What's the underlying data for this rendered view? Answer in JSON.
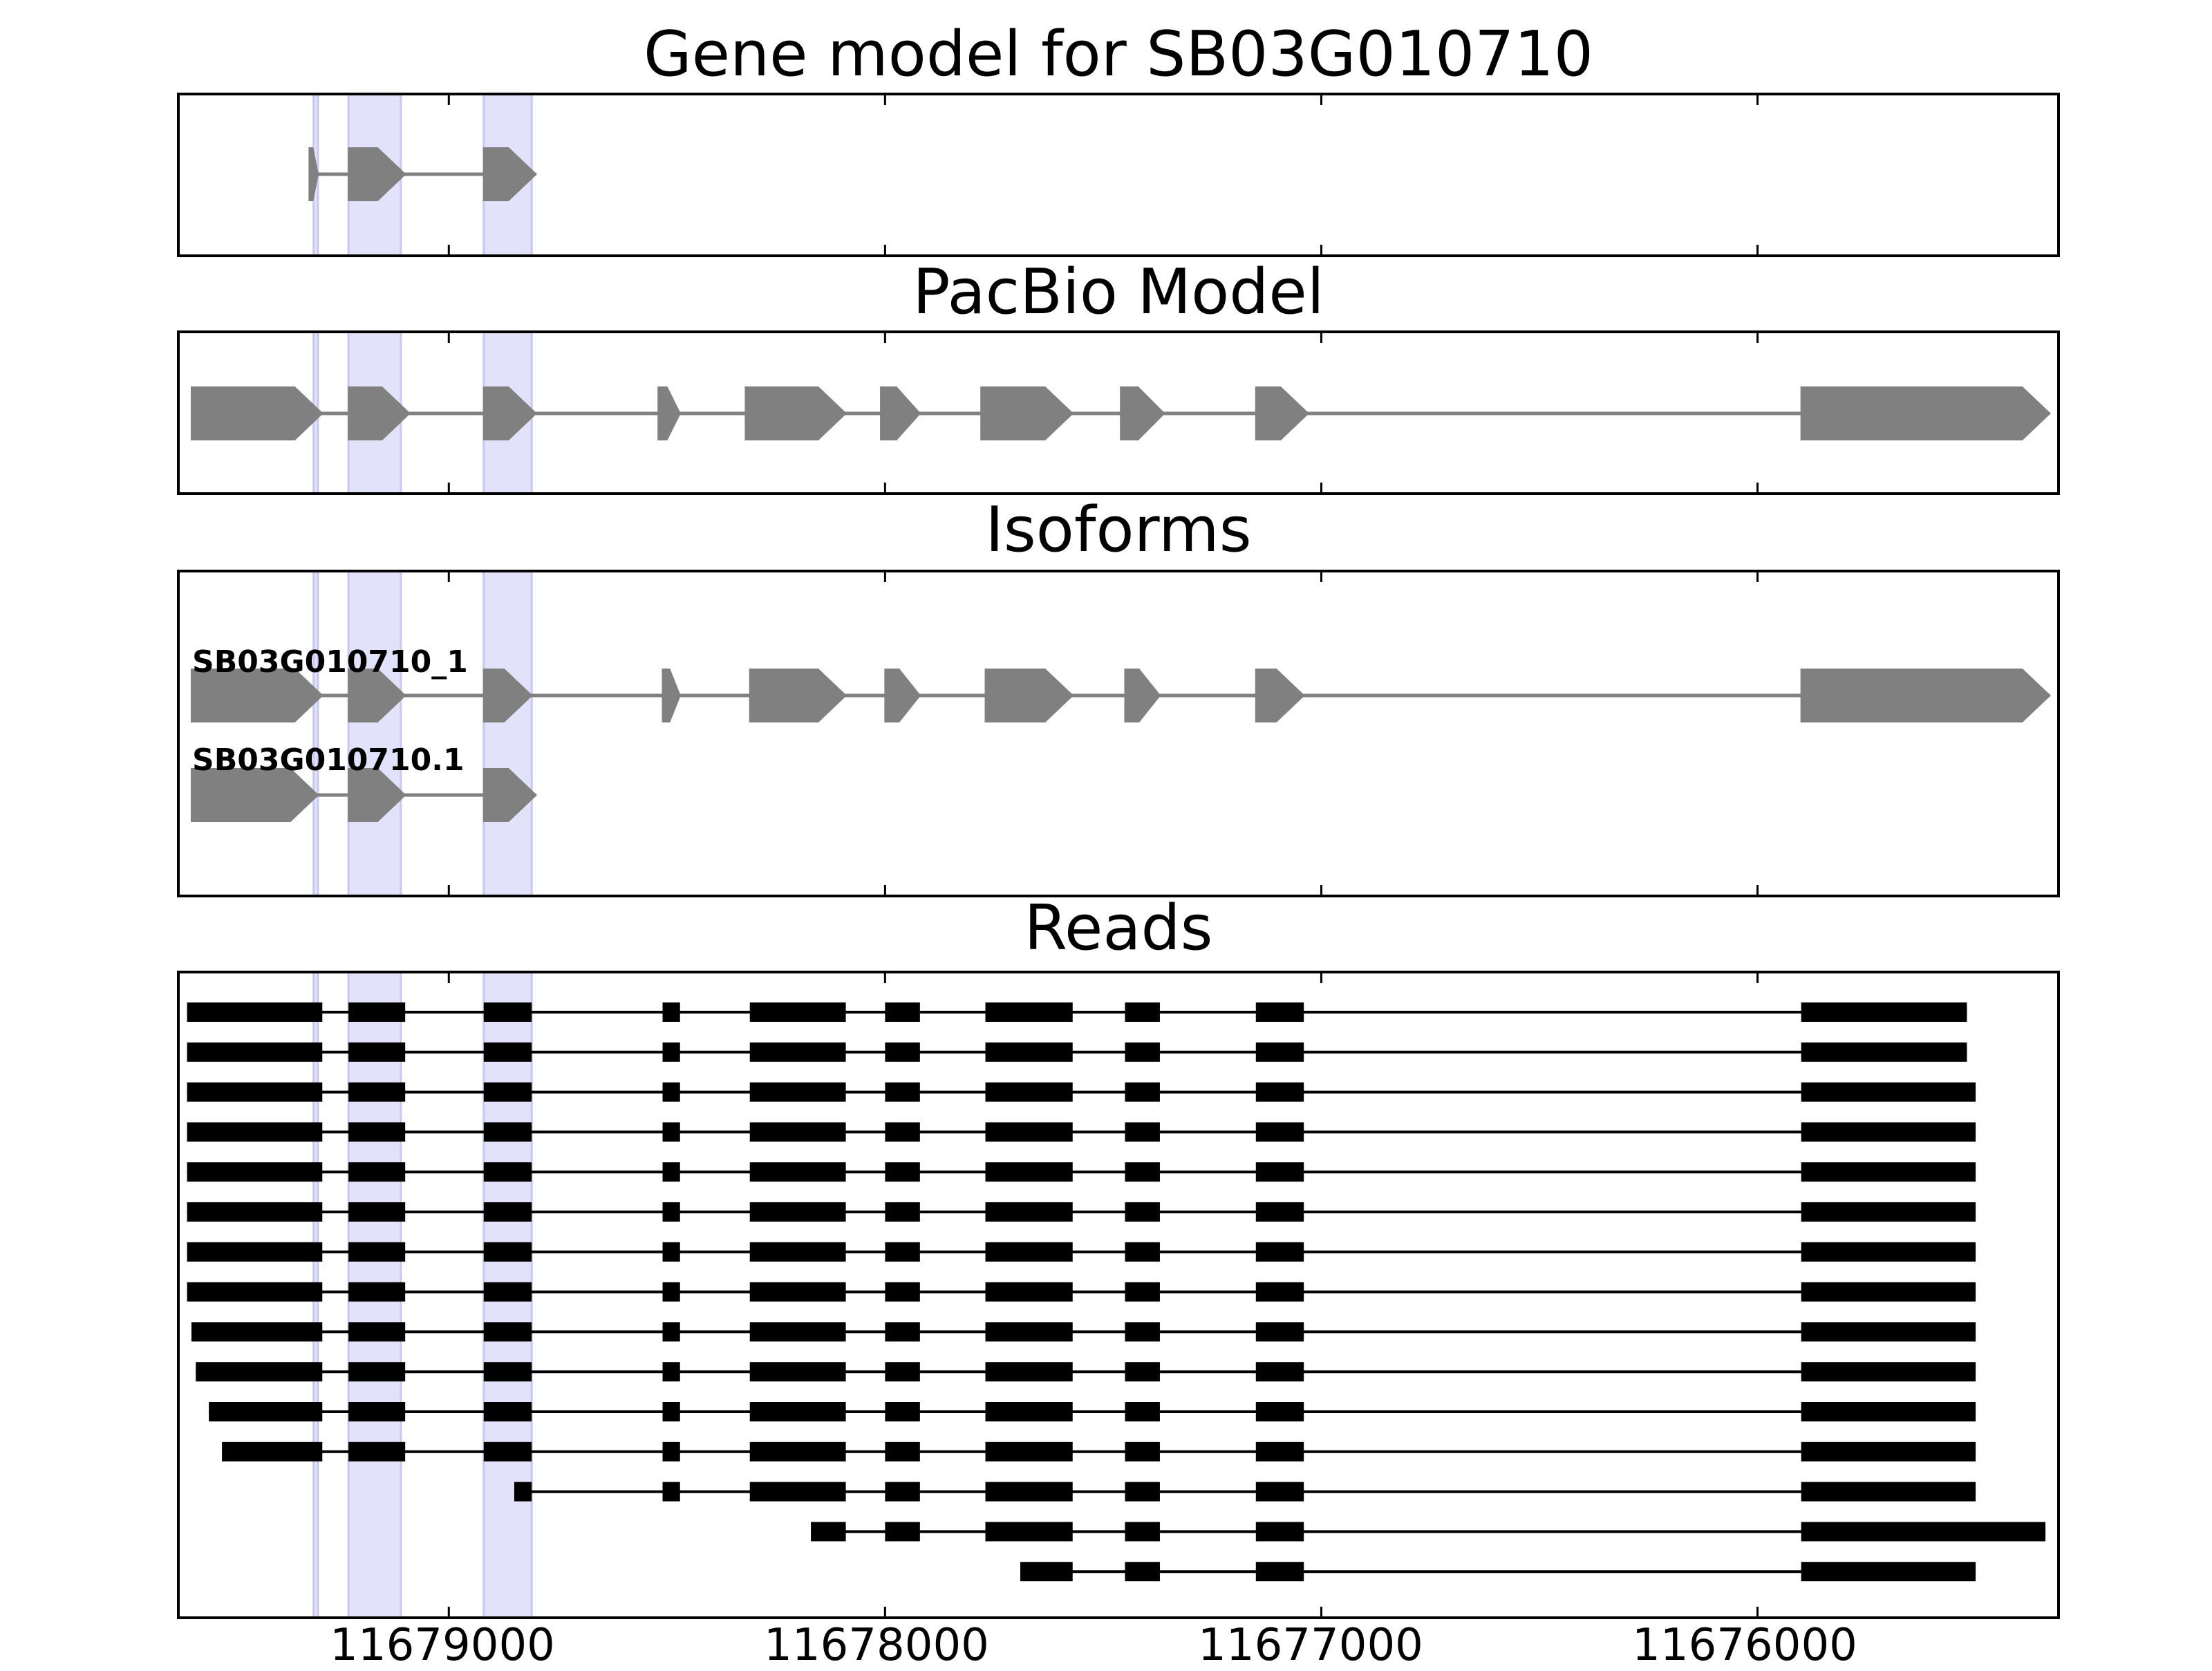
{
  "colors": {
    "feature": "#808080",
    "read": "#000000",
    "highlight": "#e2e2fb",
    "highlight_edge": "#c8c8f0"
  },
  "chart_data": {
    "type": "gene-structure",
    "strand": "minus",
    "xlim": [
      11679620,
      11675310
    ],
    "xticks": [
      11679000,
      11678000,
      11677000,
      11676000
    ],
    "xtick_labels": [
      "11679000",
      "11678000",
      "11677000",
      "11676000"
    ],
    "highlight_regions": [
      [
        11679310,
        11679300
      ],
      [
        11679230,
        11679110
      ],
      [
        11678920,
        11678810
      ]
    ],
    "panels": [
      {
        "title": "Gene model for SB03G010710",
        "tracks": [
          {
            "label": "",
            "exons": [
              [
                11679320,
                11679300
              ],
              [
                11679230,
                11679100
              ],
              [
                11678920,
                11678800
              ]
            ]
          }
        ]
      },
      {
        "title": "PacBio Model",
        "tracks": [
          {
            "label": "",
            "exons": [
              [
                11679590,
                11679290
              ],
              [
                11679230,
                11679090
              ],
              [
                11678920,
                11678800
              ],
              [
                11678520,
                11678470
              ],
              [
                11678320,
                11678090
              ],
              [
                11678010,
                11677920
              ],
              [
                11677780,
                11677570
              ],
              [
                11677460,
                11677360
              ],
              [
                11677150,
                11677030
              ],
              [
                11675900,
                11675330
              ]
            ]
          }
        ]
      },
      {
        "title": "Isoforms",
        "tracks": [
          {
            "label": "SB03G010710_1",
            "exons": [
              [
                11679590,
                11679290
              ],
              [
                11679230,
                11679100
              ],
              [
                11678920,
                11678810
              ],
              [
                11678510,
                11678470
              ],
              [
                11678310,
                11678090
              ],
              [
                11678000,
                11677920
              ],
              [
                11677770,
                11677570
              ],
              [
                11677450,
                11677370
              ],
              [
                11677150,
                11677040
              ],
              [
                11675900,
                11675330
              ]
            ]
          },
          {
            "label": "SB03G010710.1",
            "exons": [
              [
                11679590,
                11679300
              ],
              [
                11679230,
                11679100
              ],
              [
                11678920,
                11678800
              ]
            ]
          }
        ]
      },
      {
        "title": "Reads",
        "reads": [
          [
            [
              11679600,
              11679290
            ],
            [
              11679230,
              11679100
            ],
            [
              11678920,
              11678810
            ],
            [
              11678510,
              11678470
            ],
            [
              11678310,
              11678090
            ],
            [
              11678000,
              11677920
            ],
            [
              11677770,
              11677570
            ],
            [
              11677450,
              11677370
            ],
            [
              11677150,
              11677040
            ],
            [
              11675900,
              11675520
            ]
          ],
          [
            [
              11679600,
              11679290
            ],
            [
              11679230,
              11679100
            ],
            [
              11678920,
              11678810
            ],
            [
              11678510,
              11678470
            ],
            [
              11678310,
              11678090
            ],
            [
              11678000,
              11677920
            ],
            [
              11677770,
              11677570
            ],
            [
              11677450,
              11677370
            ],
            [
              11677150,
              11677040
            ],
            [
              11675900,
              11675520
            ]
          ],
          [
            [
              11679600,
              11679290
            ],
            [
              11679230,
              11679100
            ],
            [
              11678920,
              11678810
            ],
            [
              11678510,
              11678470
            ],
            [
              11678310,
              11678090
            ],
            [
              11678000,
              11677920
            ],
            [
              11677770,
              11677570
            ],
            [
              11677450,
              11677370
            ],
            [
              11677150,
              11677040
            ],
            [
              11675900,
              11675500
            ]
          ],
          [
            [
              11679600,
              11679290
            ],
            [
              11679230,
              11679100
            ],
            [
              11678920,
              11678810
            ],
            [
              11678510,
              11678470
            ],
            [
              11678310,
              11678090
            ],
            [
              11678000,
              11677920
            ],
            [
              11677770,
              11677570
            ],
            [
              11677450,
              11677370
            ],
            [
              11677150,
              11677040
            ],
            [
              11675900,
              11675500
            ]
          ],
          [
            [
              11679600,
              11679290
            ],
            [
              11679230,
              11679100
            ],
            [
              11678920,
              11678810
            ],
            [
              11678510,
              11678470
            ],
            [
              11678310,
              11678090
            ],
            [
              11678000,
              11677920
            ],
            [
              11677770,
              11677570
            ],
            [
              11677450,
              11677370
            ],
            [
              11677150,
              11677040
            ],
            [
              11675900,
              11675500
            ]
          ],
          [
            [
              11679600,
              11679290
            ],
            [
              11679230,
              11679100
            ],
            [
              11678920,
              11678810
            ],
            [
              11678510,
              11678470
            ],
            [
              11678310,
              11678090
            ],
            [
              11678000,
              11677920
            ],
            [
              11677770,
              11677570
            ],
            [
              11677450,
              11677370
            ],
            [
              11677150,
              11677040
            ],
            [
              11675900,
              11675500
            ]
          ],
          [
            [
              11679600,
              11679290
            ],
            [
              11679230,
              11679100
            ],
            [
              11678920,
              11678810
            ],
            [
              11678510,
              11678470
            ],
            [
              11678310,
              11678090
            ],
            [
              11678000,
              11677920
            ],
            [
              11677770,
              11677570
            ],
            [
              11677450,
              11677370
            ],
            [
              11677150,
              11677040
            ],
            [
              11675900,
              11675500
            ]
          ],
          [
            [
              11679600,
              11679290
            ],
            [
              11679230,
              11679100
            ],
            [
              11678920,
              11678810
            ],
            [
              11678510,
              11678470
            ],
            [
              11678310,
              11678090
            ],
            [
              11678000,
              11677920
            ],
            [
              11677770,
              11677570
            ],
            [
              11677450,
              11677370
            ],
            [
              11677150,
              11677040
            ],
            [
              11675900,
              11675500
            ]
          ],
          [
            [
              11679590,
              11679290
            ],
            [
              11679230,
              11679100
            ],
            [
              11678920,
              11678810
            ],
            [
              11678510,
              11678470
            ],
            [
              11678310,
              11678090
            ],
            [
              11678000,
              11677920
            ],
            [
              11677770,
              11677570
            ],
            [
              11677450,
              11677370
            ],
            [
              11677150,
              11677040
            ],
            [
              11675900,
              11675500
            ]
          ],
          [
            [
              11679580,
              11679290
            ],
            [
              11679230,
              11679100
            ],
            [
              11678920,
              11678810
            ],
            [
              11678510,
              11678470
            ],
            [
              11678310,
              11678090
            ],
            [
              11678000,
              11677920
            ],
            [
              11677770,
              11677570
            ],
            [
              11677450,
              11677370
            ],
            [
              11677150,
              11677040
            ],
            [
              11675900,
              11675500
            ]
          ],
          [
            [
              11679550,
              11679290
            ],
            [
              11679230,
              11679100
            ],
            [
              11678920,
              11678810
            ],
            [
              11678510,
              11678470
            ],
            [
              11678310,
              11678090
            ],
            [
              11678000,
              11677920
            ],
            [
              11677770,
              11677570
            ],
            [
              11677450,
              11677370
            ],
            [
              11677150,
              11677040
            ],
            [
              11675900,
              11675500
            ]
          ],
          [
            [
              11679520,
              11679290
            ],
            [
              11679230,
              11679100
            ],
            [
              11678920,
              11678810
            ],
            [
              11678510,
              11678470
            ],
            [
              11678310,
              11678090
            ],
            [
              11678000,
              11677920
            ],
            [
              11677770,
              11677570
            ],
            [
              11677450,
              11677370
            ],
            [
              11677150,
              11677040
            ],
            [
              11675900,
              11675500
            ]
          ],
          [
            [
              11678850,
              11678810
            ],
            [
              11678510,
              11678470
            ],
            [
              11678310,
              11678090
            ],
            [
              11678000,
              11677920
            ],
            [
              11677770,
              11677570
            ],
            [
              11677450,
              11677370
            ],
            [
              11677150,
              11677040
            ],
            [
              11675900,
              11675500
            ]
          ],
          [
            [
              11678170,
              11678090
            ],
            [
              11678000,
              11677920
            ],
            [
              11677770,
              11677570
            ],
            [
              11677450,
              11677370
            ],
            [
              11677150,
              11677040
            ],
            [
              11675900,
              11675340
            ]
          ],
          [
            [
              11677690,
              11677570
            ],
            [
              11677450,
              11677370
            ],
            [
              11677150,
              11677040
            ],
            [
              11675900,
              11675500
            ]
          ]
        ]
      }
    ]
  }
}
